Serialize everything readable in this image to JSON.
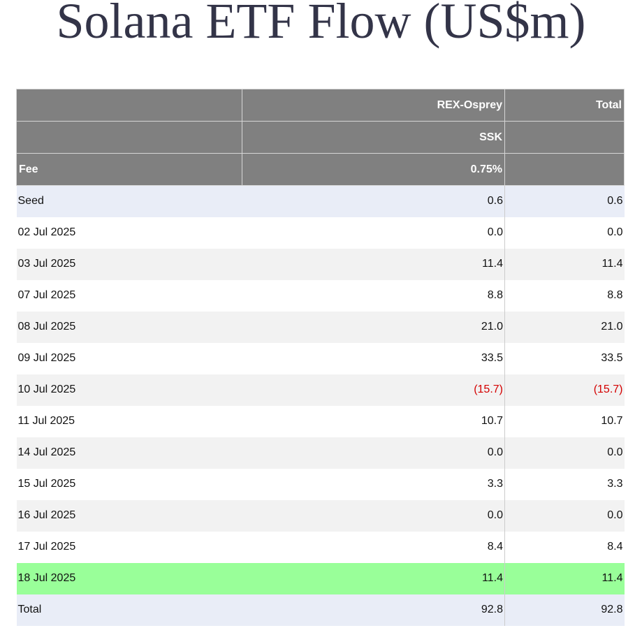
{
  "title": "Solana ETF Flow (US$m)",
  "colors": {
    "header_bg": "#808080",
    "negative": "#d40000",
    "latest_row": "#99ff99",
    "summary_row": "#e9edf7"
  },
  "table": {
    "header": {
      "issuer_label": "REX-Osprey",
      "total_label": "Total",
      "ticker_label": "SSK",
      "fee_label": "Fee",
      "fee_value": "0.75%"
    },
    "seed": {
      "label": "Seed",
      "ssk": "0.6",
      "total": "0.6"
    },
    "rows": [
      {
        "date": "02 Jul 2025",
        "ssk": "0.0",
        "total": "0.0"
      },
      {
        "date": "03 Jul 2025",
        "ssk": "11.4",
        "total": "11.4"
      },
      {
        "date": "07 Jul 2025",
        "ssk": "8.8",
        "total": "8.8"
      },
      {
        "date": "08 Jul 2025",
        "ssk": "21.0",
        "total": "21.0"
      },
      {
        "date": "09 Jul 2025",
        "ssk": "33.5",
        "total": "33.5"
      },
      {
        "date": "10 Jul 2025",
        "ssk": "(15.7)",
        "total": "(15.7)"
      },
      {
        "date": "11 Jul 2025",
        "ssk": "10.7",
        "total": "10.7"
      },
      {
        "date": "14 Jul 2025",
        "ssk": "0.0",
        "total": "0.0"
      },
      {
        "date": "15 Jul 2025",
        "ssk": "3.3",
        "total": "3.3"
      },
      {
        "date": "16 Jul 2025",
        "ssk": "0.0",
        "total": "0.0"
      },
      {
        "date": "17 Jul 2025",
        "ssk": "8.4",
        "total": "8.4"
      },
      {
        "date": "18 Jul 2025",
        "ssk": "11.4",
        "total": "11.4"
      }
    ],
    "total_row": {
      "label": "Total",
      "ssk": "92.8",
      "total": "92.8"
    }
  }
}
